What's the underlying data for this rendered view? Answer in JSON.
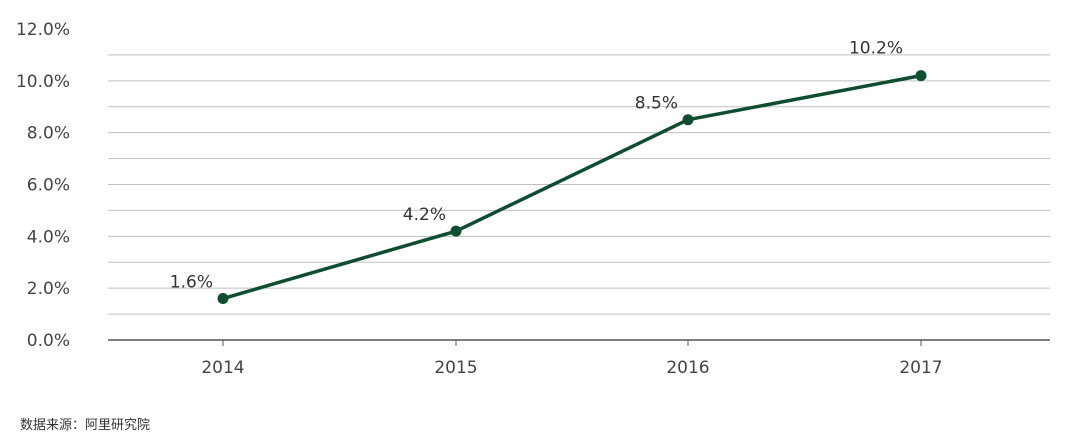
{
  "chart_data": {
    "type": "line",
    "title": "",
    "xlabel": "",
    "ylabel": "",
    "categories": [
      "2014",
      "2015",
      "2016",
      "2017"
    ],
    "values": [
      1.6,
      4.2,
      8.5,
      10.2
    ],
    "data_labels": [
      "1.6%",
      "4.2%",
      "8.5%",
      "10.2%"
    ],
    "ylim": [
      0,
      12
    ],
    "y_ticks": [
      0,
      2,
      4,
      6,
      8,
      10,
      12
    ],
    "y_tick_labels": [
      "0.0%",
      "2.0%",
      "4.0%",
      "6.0%",
      "8.0%",
      "10.0%",
      "12.0%"
    ],
    "grid": true,
    "line_color": "#0e4d2f",
    "grid_color": "#bfbfbf"
  },
  "source": "数据来源：阿里研究院"
}
